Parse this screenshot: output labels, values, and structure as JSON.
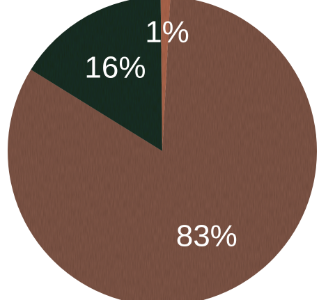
{
  "chart_data": {
    "type": "pie",
    "categories": [
      "",
      "",
      ""
    ],
    "values": [
      83,
      16,
      1
    ],
    "labels": [
      "83%",
      "16%",
      "1%"
    ],
    "colors": [
      "#82594a",
      "#1f3025",
      "#b0694f"
    ]
  }
}
